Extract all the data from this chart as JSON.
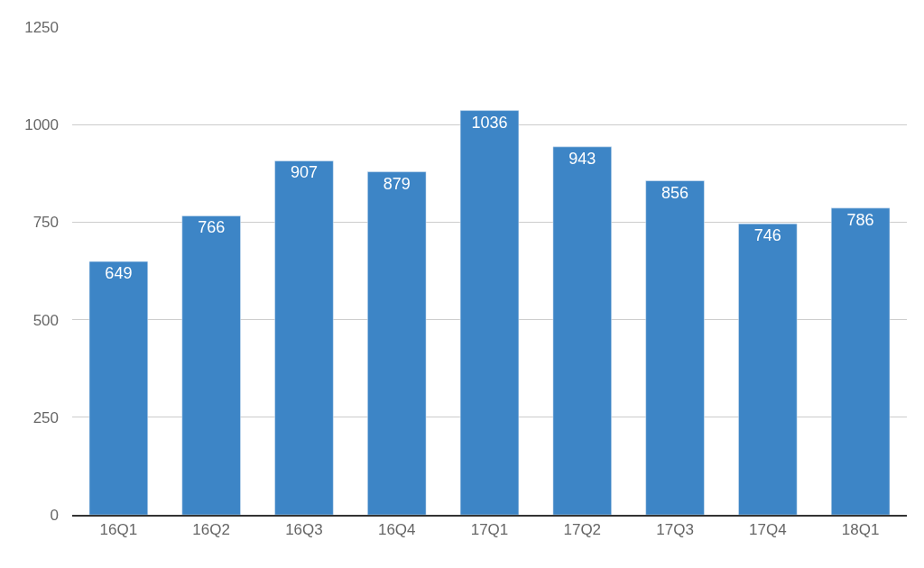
{
  "chart_data": {
    "type": "bar",
    "categories": [
      "16Q1",
      "16Q2",
      "16Q3",
      "16Q4",
      "17Q1",
      "17Q2",
      "17Q3",
      "17Q4",
      "18Q1"
    ],
    "values": [
      649,
      766,
      907,
      879,
      1036,
      943,
      856,
      746,
      786
    ],
    "color": "#3d85c6",
    "ylim": [
      0,
      1250
    ],
    "yticks": [
      0,
      250,
      500,
      750,
      1000,
      1250
    ],
    "grid": "y",
    "data_labels": true,
    "legend": false
  }
}
